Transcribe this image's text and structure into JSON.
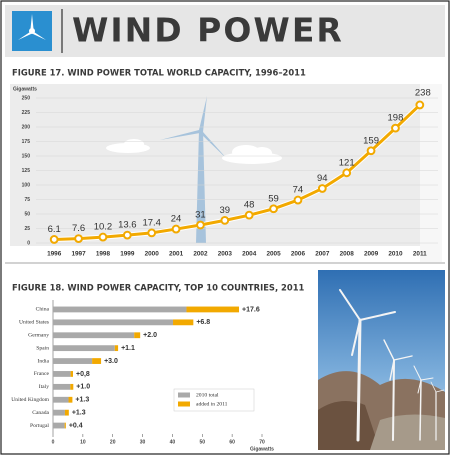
{
  "header": {
    "title": "WIND POWER"
  },
  "chart_data": [
    {
      "type": "line",
      "title": "FIGURE 17. WIND POWER TOTAL WORLD CAPACITY, 1996–2011",
      "ylabel": "Gigawatts",
      "categories": [
        "1996",
        "1997",
        "1998",
        "1999",
        "2000",
        "2001",
        "2002",
        "2003",
        "2004",
        "2005",
        "2006",
        "2007",
        "2008",
        "2009",
        "2010",
        "2011"
      ],
      "values": [
        6.1,
        7.6,
        10.2,
        13.6,
        17.4,
        24,
        31,
        39,
        48,
        59,
        74,
        94,
        121,
        159,
        198,
        238
      ],
      "color": "#f2a900",
      "ylim": [
        0,
        250
      ],
      "yticks": [
        0,
        25,
        50,
        75,
        100,
        125,
        150,
        175,
        200,
        225,
        250
      ],
      "grid": true
    },
    {
      "type": "hbar_stacked",
      "title": "FIGURE 18. WIND POWER CAPACITY, TOP 10 COUNTRIES, 2011",
      "xlabel": "Gigawatts",
      "categories": [
        "China",
        "United States",
        "Germany",
        "Spain",
        "India",
        "France",
        "Italy",
        "United Kingdom",
        "Canada",
        "Portugal"
      ],
      "series": [
        {
          "name": "2010 total",
          "color": "#a9a9a9",
          "values": [
            44.7,
            40.2,
            27.2,
            20.7,
            13.1,
            5.9,
            5.8,
            5.2,
            4.0,
            3.9
          ]
        },
        {
          "name": "added in 2011",
          "color": "#f2a900",
          "values": [
            17.6,
            6.8,
            2.0,
            1.1,
            3.0,
            0.8,
            1.0,
            1.3,
            1.3,
            0.4
          ],
          "value_labels": [
            "+17.6",
            "+6.8",
            "+2.0",
            "+1.1",
            "+3.0",
            "+0,8",
            "+1.0",
            "+1.3",
            "+1.3",
            "+0.4"
          ]
        }
      ],
      "xlim": [
        0,
        70
      ],
      "xticks": [
        0,
        10,
        20,
        30,
        40,
        50,
        60,
        70
      ],
      "grid": false
    }
  ]
}
